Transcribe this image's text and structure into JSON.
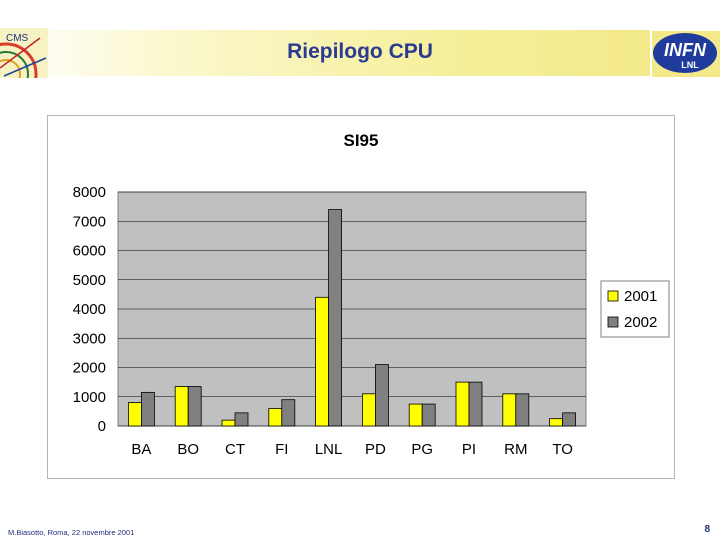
{
  "header": {
    "title": "Riepilogo CPU",
    "cms_label": "CMS",
    "infn_label": "INFN",
    "lnl_label": "LNL",
    "band_colors": [
      "#ffffff",
      "#f3e98a"
    ],
    "title_color": "#2a3b91"
  },
  "footer": {
    "author": "M.Biasotto, Roma, 22 novembre 2001",
    "page": "8"
  },
  "chart_data": {
    "type": "bar",
    "title": "SI95",
    "categories": [
      "BA",
      "BO",
      "CT",
      "FI",
      "LNL",
      "PD",
      "PG",
      "PI",
      "RM",
      "TO"
    ],
    "series": [
      {
        "name": "2001",
        "color": "#ffff00",
        "values": [
          800,
          1350,
          200,
          600,
          4400,
          1100,
          750,
          1500,
          1100,
          250
        ]
      },
      {
        "name": "2002",
        "color": "#808080",
        "values": [
          1150,
          1350,
          450,
          900,
          7400,
          2100,
          750,
          1500,
          1100,
          450
        ]
      }
    ],
    "yticks": [
      "0",
      "1000",
      "2000",
      "3000",
      "4000",
      "5000",
      "6000",
      "7000",
      "8000"
    ],
    "ylim": [
      0,
      8000
    ],
    "grid": true,
    "plot_background": "#c0c0c0",
    "legend": "right"
  }
}
